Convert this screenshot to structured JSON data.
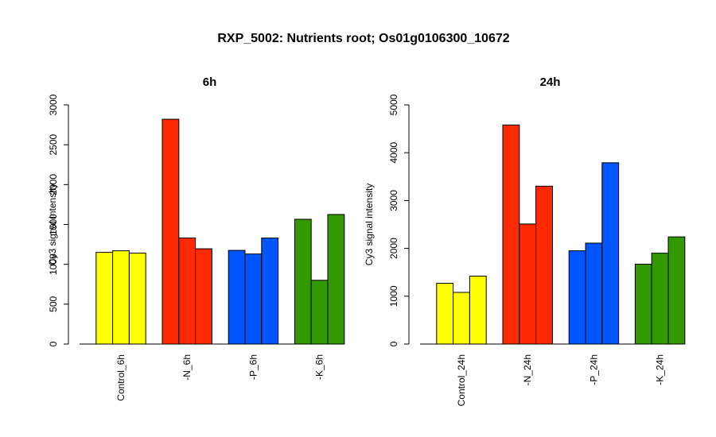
{
  "figure": {
    "title": "RXP_5002: Nutrients root; Os01g0106300_10672"
  },
  "chart_data": [
    {
      "type": "bar",
      "title": "6h",
      "ylabel": "Cy3 signal intensity",
      "xlabel": "",
      "ylim": [
        0,
        3000
      ],
      "yticks": [
        0,
        500,
        1000,
        1500,
        2000,
        2500,
        3000
      ],
      "grid": false,
      "categories": [
        "Control_6h",
        "-N_6h",
        "-P_6h",
        "-K_6h"
      ],
      "groups": [
        {
          "label": "Control_6h",
          "color": "#ffff00",
          "values": [
            1150,
            1170,
            1140
          ]
        },
        {
          "label": "-N_6h",
          "color": "#ff2a00",
          "values": [
            2820,
            1330,
            1195
          ]
        },
        {
          "label": "-P_6h",
          "color": "#0055ff",
          "values": [
            1175,
            1130,
            1330
          ]
        },
        {
          "label": "-K_6h",
          "color": "#339900",
          "values": [
            1565,
            800,
            1625
          ]
        }
      ]
    },
    {
      "type": "bar",
      "title": "24h",
      "ylabel": "Cy3 signal intensity",
      "xlabel": "",
      "ylim": [
        0,
        5000
      ],
      "yticks": [
        0,
        1000,
        2000,
        3000,
        4000,
        5000
      ],
      "grid": false,
      "categories": [
        "Control_24h",
        "-N_24h",
        "-P_24h",
        "-K_24h"
      ],
      "groups": [
        {
          "label": "Control_24h",
          "color": "#ffff00",
          "values": [
            1270,
            1080,
            1420
          ]
        },
        {
          "label": "-N_24h",
          "color": "#ff2a00",
          "values": [
            4580,
            2510,
            3300
          ]
        },
        {
          "label": "-P_24h",
          "color": "#0055ff",
          "values": [
            1950,
            2110,
            3790
          ]
        },
        {
          "label": "-K_24h",
          "color": "#339900",
          "values": [
            1670,
            1900,
            2240
          ]
        }
      ]
    }
  ]
}
